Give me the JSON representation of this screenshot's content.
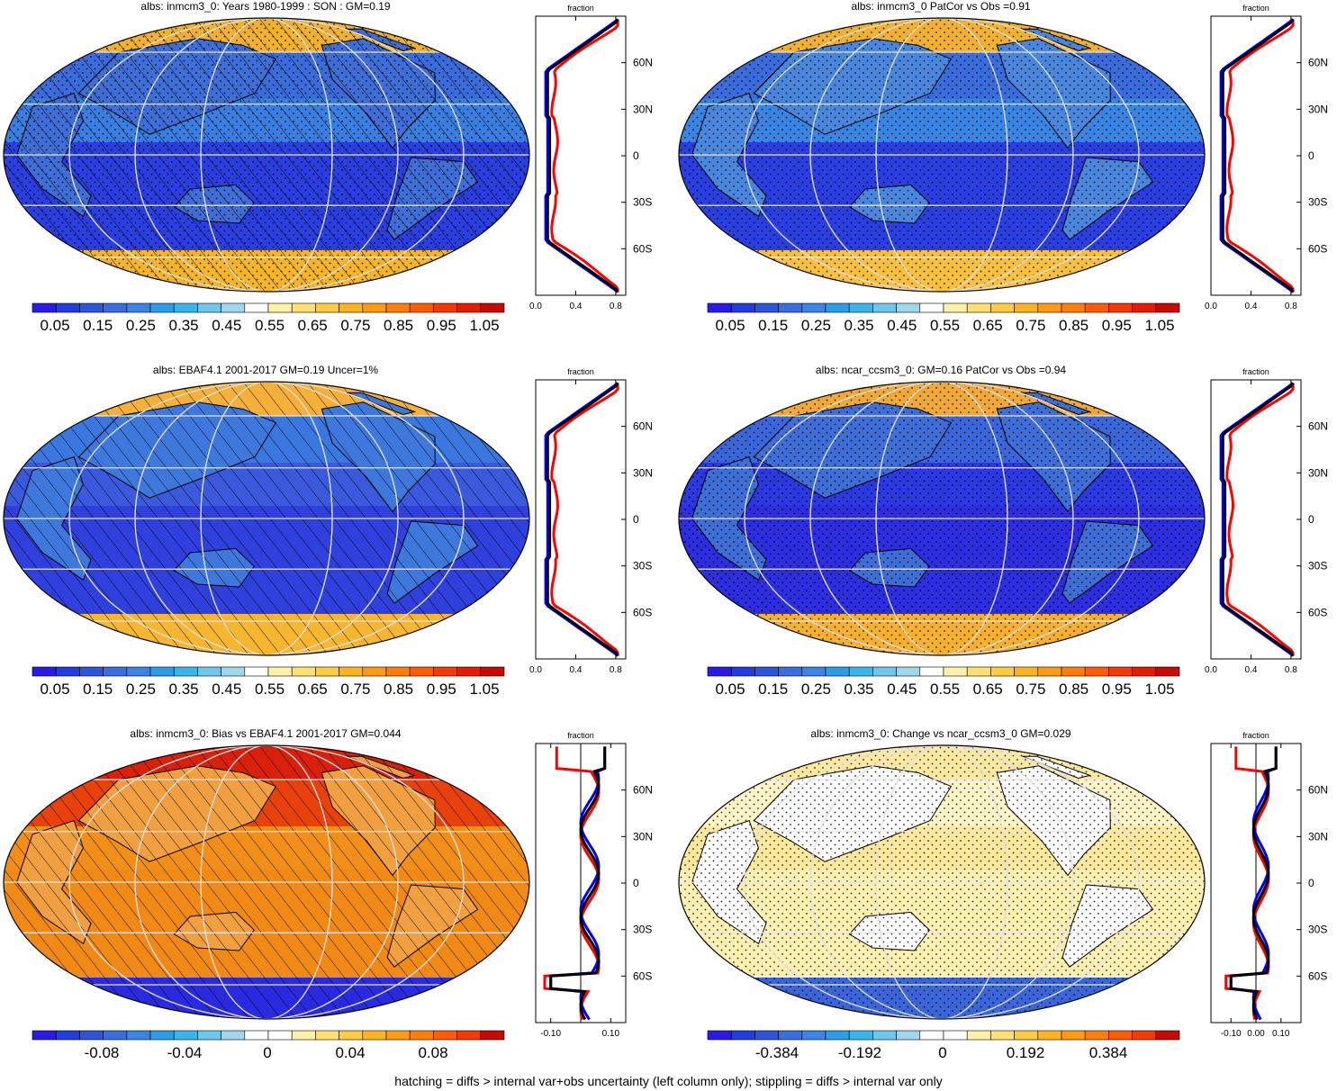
{
  "footer": "hatching = diffs > internal var+obs uncertainty (left column only); stippling = diffs > internal var only",
  "lat_labels": [
    "60N",
    "30N",
    "0",
    "30S",
    "60S"
  ],
  "zonal_title": "fraction",
  "colors": {
    "albedo_scale": [
      "#2a1ae8",
      "#1f3de0",
      "#2b56dc",
      "#3a6de0",
      "#3c83e6",
      "#2c9ee8",
      "#38b6ea",
      "#6cc7ea",
      "#9ed6ec",
      "#ffffff",
      "#fff2a8",
      "#ffe070",
      "#ffcb40",
      "#ffb31e",
      "#ff9a12",
      "#ff7d0a",
      "#ff5c06",
      "#f53a04",
      "#e51c02",
      "#c80a02"
    ],
    "diff_scale": [
      "#2a1ae8",
      "#1f3de0",
      "#2b56dc",
      "#3a6de0",
      "#3c83e6",
      "#2c9ee8",
      "#38b6ea",
      "#6cc7ea",
      "#9ed6ec",
      "#ffffff",
      "#ffffff",
      "#fff2a8",
      "#ffe070",
      "#ffcb40",
      "#ffb31e",
      "#ff9a12",
      "#ff7d0a",
      "#ff5c06",
      "#f53a04",
      "#c80a02"
    ],
    "model_line": "#0000ff",
    "obs_line": "#ff0000",
    "mean_line": "#000000"
  },
  "panels": [
    {
      "title": "albs: inmcm3_0: Years 1980-1999 : SON : GM=0.19",
      "map": {
        "ocean": "#2b3fe0",
        "tropics": "#3a7ee2",
        "north": "#3b6cdb",
        "south_ice": "#f5b52a",
        "arctic": "#f0b030",
        "land": "#3e6ed6",
        "hatch": true,
        "stipple": true
      },
      "zonal": {
        "x_ticks": [
          "0.0",
          "0.4",
          "0.8"
        ],
        "xmin": 0.0,
        "xmax": 0.9
      },
      "colorbar": {
        "scale": "albedo",
        "labels": [
          "0.05",
          "0.15",
          "0.25",
          "0.35",
          "0.45",
          "0.55",
          "0.65",
          "0.75",
          "0.85",
          "0.95",
          "1.05"
        ]
      }
    },
    {
      "title": "albs: inmcm3_0 PatCor vs Obs =0.91",
      "map": {
        "ocean": "#2b3fe0",
        "tropics": "#3a84e4",
        "north": "#3a6cdc",
        "south_ice": "#f7c040",
        "arctic": "#f0b030",
        "land": "#4a86dc",
        "hatch": false,
        "stipple": true
      },
      "zonal": {
        "x_ticks": [
          "0.0",
          "0.4",
          "0.8"
        ],
        "xmin": 0.0,
        "xmax": 0.9
      },
      "colorbar": {
        "scale": "albedo",
        "labels": [
          "0.05",
          "0.15",
          "0.25",
          "0.35",
          "0.45",
          "0.55",
          "0.65",
          "0.75",
          "0.85",
          "0.95",
          "1.05"
        ]
      }
    },
    {
      "title": "albs: EBAF4.1 2001-2017 GM=0.19 Uncer=1%",
      "map": {
        "ocean": "#3040dc",
        "tropics": "#3a5adb",
        "north": "#3a78e0",
        "south_ice": "#f7b630",
        "arctic": "#f5b03a",
        "land": "#3e78dc",
        "hatch": true,
        "stipple": false
      },
      "zonal": {
        "x_ticks": [
          "0.0",
          "0.4",
          "0.8"
        ],
        "xmin": 0.0,
        "xmax": 0.9
      },
      "colorbar": {
        "scale": "albedo",
        "labels": [
          "0.05",
          "0.15",
          "0.25",
          "0.35",
          "0.45",
          "0.55",
          "0.65",
          "0.75",
          "0.85",
          "0.95",
          "1.05"
        ]
      }
    },
    {
      "title": "albs: ncar_ccsm3_0: GM=0.16 PatCor vs Obs =0.94",
      "map": {
        "ocean": "#2c2ee0",
        "tropics": "#2c38e0",
        "north": "#3a66da",
        "south_ice": "#f5b030",
        "arctic": "#f0a836",
        "land": "#3e6ed6",
        "hatch": false,
        "stipple": true
      },
      "zonal": {
        "x_ticks": [
          "0.0",
          "0.4",
          "0.8"
        ],
        "xmin": 0.0,
        "xmax": 0.9
      },
      "colorbar": {
        "scale": "albedo",
        "labels": [
          "0.05",
          "0.15",
          "0.25",
          "0.35",
          "0.45",
          "0.55",
          "0.65",
          "0.75",
          "0.85",
          "0.95",
          "1.05"
        ]
      }
    },
    {
      "title": "albs: inmcm3_0: Bias vs EBAF4.1 2001-2017  GM=0.044",
      "map": {
        "ocean": "#f08a14",
        "tropics": "#f28f18",
        "north": "#e8420a",
        "south_ice": "#2a2ae0",
        "arctic": "#d8200a",
        "land": "#f0a040",
        "hatch": true,
        "stipple": false
      },
      "zonal": {
        "x_ticks": [
          "-0.10",
          "0.10"
        ],
        "xmin": -0.15,
        "xmax": 0.15
      },
      "colorbar": {
        "scale": "diff",
        "labels": [
          "-0.08",
          "-0.04",
          "0",
          "0.04",
          "0.08"
        ]
      }
    },
    {
      "title": "albs: inmcm3_0: Change vs ncar_ccsm3_0 GM=0.029",
      "map": {
        "ocean": "#fdf0b0",
        "tropics": "#fde89c",
        "north": "#fff4c8",
        "south_ice": "#3a66da",
        "arctic": "#fde8a0",
        "land": "#ffffff",
        "hatch": false,
        "stipple": true
      },
      "zonal": {
        "x_ticks": [
          "-0.10",
          "0.00",
          "0.10"
        ],
        "xmin": -0.18,
        "xmax": 0.18
      },
      "colorbar": {
        "scale": "diff",
        "labels": [
          "-0.384",
          "-0.192",
          "0",
          "0.192",
          "0.384"
        ]
      }
    }
  ]
}
